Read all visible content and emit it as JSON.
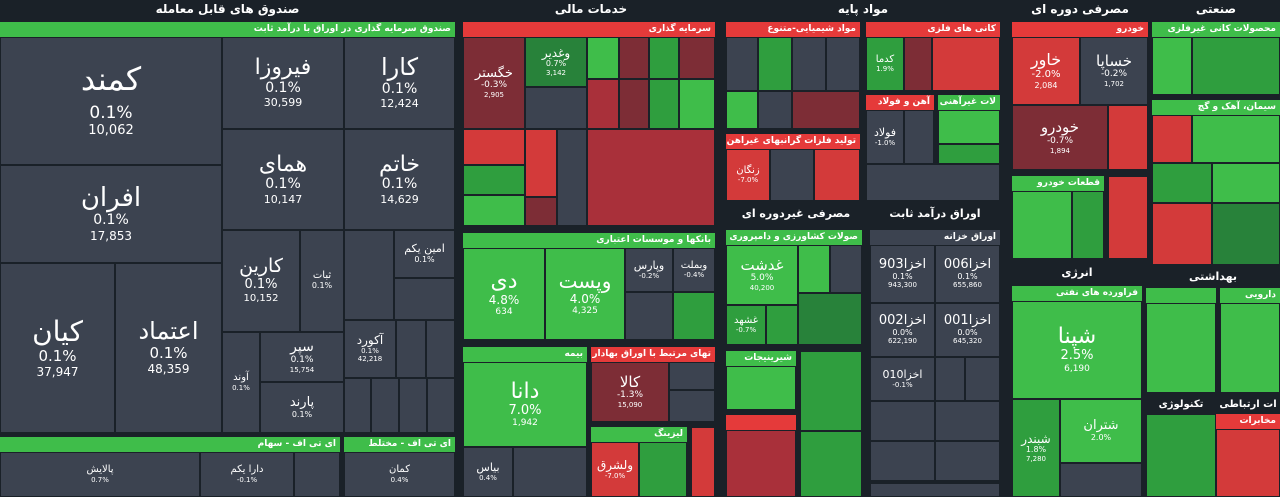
{
  "sections": {
    "funds": "صندوق های قابل معامله",
    "financial": "خدمات مالی",
    "materials": "مواد پایه",
    "cyclical": "مصرفی دوره ای",
    "industrial": "صنعتی",
    "noncyclical": "مصرفی غیردوره ای",
    "fixed_income": "اوراق درآمد ثابت",
    "energy": "انرژی"
  },
  "groups": {
    "fixed_funds": "صندوق سرمایه گذاری در اوراق با درآمد ثابت",
    "etf_stock": "ای تی اف - سهام",
    "etf_mixed": "ای تی اف - مختلط",
    "investment": "سرمایه گذاری",
    "banks": "بانکها و موسسات اعتباری",
    "insurance": "بیمه",
    "brokerage": "تهای مرتبط با اوراق بهادار",
    "leasing": "لیزینگ",
    "chemicals": "مواد شیمیایی-متنوع",
    "metal_ore": "کانی های فلزی",
    "steel": "آهن و فولاد",
    "nonferrous": "لات غیرآهنی",
    "precious": "تولید فلزات گرانبهای غیراهن",
    "auto": "خودرو",
    "parts": "قطعات خودرو",
    "nonmetal": "محصولات کانی غیرفلزی",
    "cement": "سیمان، آهک و گچ",
    "agri": "صولات کشاورزی و دامپروری",
    "sugar": "شیرینیجات",
    "treasury": "اوراق خزانه",
    "refinery": "فراورده های نفتی",
    "pharma": "دارویی",
    "telecom": "مخابرات",
    "health": "بهداشتی",
    "tech": "تکنولوژی",
    "comm": "ات ارتباطی"
  },
  "tiles": {
    "kamand": {
      "name": "کمند",
      "pct": "0.1%",
      "vol": "10,062"
    },
    "firooza": {
      "name": "فیروزا",
      "pct": "0.1%",
      "vol": "30,599"
    },
    "kara": {
      "name": "کارا",
      "pct": "0.1%",
      "vol": "12,424"
    },
    "afran": {
      "name": "افران",
      "pct": "0.1%",
      "vol": "17,853"
    },
    "homay": {
      "name": "همای",
      "pct": "0.1%",
      "vol": "10,147"
    },
    "khatam": {
      "name": "خاتم",
      "pct": "0.1%",
      "vol": "14,629"
    },
    "karin": {
      "name": "کارین",
      "pct": "0.1%",
      "vol": "10,152"
    },
    "sabat": {
      "name": "ثبات",
      "pct": "0.1%"
    },
    "amin": {
      "name": "امین یکم",
      "pct": "0.1%"
    },
    "kian": {
      "name": "کیان",
      "pct": "0.1%",
      "vol": "37,947"
    },
    "etemad": {
      "name": "اعتماد",
      "pct": "0.1%",
      "vol": "48,359"
    },
    "separ": {
      "name": "سپر",
      "pct": "0.1%",
      "vol": "15,754"
    },
    "akord": {
      "name": "آکورد",
      "pct": "0.1%",
      "vol": "42,218"
    },
    "parand": {
      "name": "پارند",
      "pct": "0.1%"
    },
    "avand": {
      "name": "آوند",
      "pct": "0.1%"
    },
    "palayesh": {
      "name": "پالایش",
      "pct": "0.7%"
    },
    "dara": {
      "name": "دارا یکم",
      "pct": "-0.1%"
    },
    "kaman": {
      "name": "کمان",
      "pct": "0.4%"
    },
    "khegostar": {
      "name": "خگستر",
      "pct": "-0.3%",
      "vol": "2,905"
    },
    "vaghadir": {
      "name": "وغدیر",
      "pct": "0.7%",
      "vol": "3,142"
    },
    "dey": {
      "name": "دی",
      "pct": "4.8%",
      "vol": "634"
    },
    "vapost": {
      "name": "وپست",
      "pct": "4.0%",
      "vol": "4,325"
    },
    "vaparsa": {
      "name": "وپارس",
      "pct": "-0.2%"
    },
    "vamellat": {
      "name": "وبملت",
      "pct": "-0.4%"
    },
    "dana": {
      "name": "دانا",
      "pct": "7.0%",
      "vol": "1,942"
    },
    "kala": {
      "name": "کالا",
      "pct": "-1.3%",
      "vol": "15,090"
    },
    "valshargh": {
      "name": "ولشرق",
      "pct": "-7.0%"
    },
    "bayas": {
      "name": "بیاس",
      "pct": "0.4%"
    },
    "kadma": {
      "name": "کدما",
      "pct": "1.9%"
    },
    "fooolad": {
      "name": "فولاد",
      "pct": "-1.0%"
    },
    "zangan": {
      "name": "زنگان",
      "pct": "-7.0%"
    },
    "khavar": {
      "name": "خاور",
      "pct": "-2.0%",
      "vol": "2,084"
    },
    "khasapa": {
      "name": "خساپا",
      "pct": "-0.2%",
      "vol": "1,702"
    },
    "khodro": {
      "name": "خودرو",
      "pct": "-0.7%",
      "vol": "1,894"
    },
    "ghadasht": {
      "name": "غدشت",
      "pct": "5.0%",
      "vol": "40,200"
    },
    "ghashahd": {
      "name": "غشهد",
      "pct": "-0.7%"
    },
    "akhza903": {
      "name": "اخزا903",
      "pct": "0.1%",
      "vol": "943,300"
    },
    "akhza006": {
      "name": "اخزا006",
      "pct": "0.1%",
      "vol": "655,860"
    },
    "akhza002": {
      "name": "اخزا002",
      "pct": "0.0%",
      "vol": "622,190"
    },
    "akhza001": {
      "name": "اخزا001",
      "pct": "0.0%",
      "vol": "645,320"
    },
    "akhza010": {
      "name": "اخزا010",
      "pct": "-0.1%"
    },
    "shepna": {
      "name": "شپنا",
      "pct": "2.5%",
      "vol": "6,190"
    },
    "shebandar": {
      "name": "شبندر",
      "pct": "1.8%",
      "vol": "7,280"
    },
    "shetran": {
      "name": "شتران",
      "pct": "2.0%"
    }
  }
}
